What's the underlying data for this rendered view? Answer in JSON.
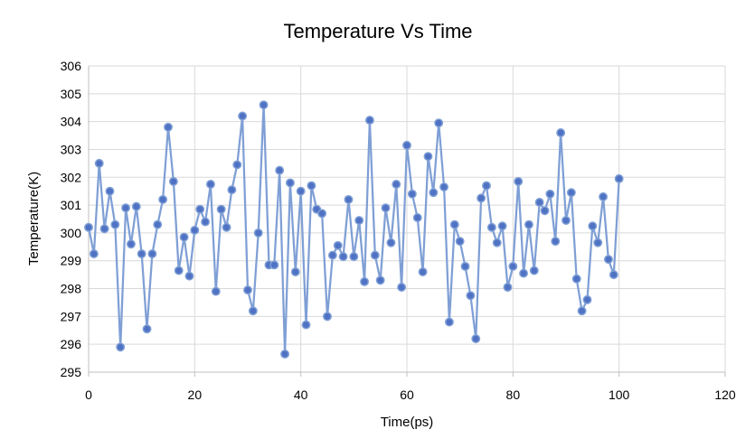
{
  "chart_data": {
    "type": "line",
    "title": "Temperature Vs Time",
    "xlabel": "Time(ps)",
    "ylabel": "Temperature(K)",
    "xlim": [
      0,
      120
    ],
    "ylim": [
      295,
      306
    ],
    "x_ticks": [
      "0",
      "20",
      "40",
      "60",
      "80",
      "100",
      "120"
    ],
    "y_ticks": [
      "295",
      "296",
      "297",
      "298",
      "299",
      "300",
      "301",
      "302",
      "303",
      "304",
      "305",
      "306"
    ],
    "x_tick_values": [
      0,
      20,
      40,
      60,
      80,
      100,
      120
    ],
    "y_tick_values": [
      295,
      296,
      297,
      298,
      299,
      300,
      301,
      302,
      303,
      304,
      305,
      306
    ],
    "grid": "vertical and horizontal",
    "legend": "none",
    "series": [
      {
        "color": "#7f9fd5",
        "x": [
          0,
          1,
          2,
          3,
          4,
          5,
          6,
          7,
          8,
          9,
          10,
          11,
          12,
          13,
          14,
          15,
          16,
          17,
          18,
          19,
          20,
          21,
          22,
          23,
          24,
          25,
          26,
          27,
          28,
          29,
          30,
          31,
          32,
          33,
          34,
          35,
          36,
          37,
          38,
          39,
          40,
          41,
          42,
          43,
          44,
          45,
          46,
          47,
          48,
          49,
          50,
          51,
          52,
          53,
          54,
          55,
          56,
          57,
          58,
          59,
          60,
          61,
          62,
          63,
          64,
          65,
          66,
          67,
          68,
          69,
          70,
          71,
          72,
          73,
          74,
          75,
          76,
          77,
          78,
          79,
          80,
          81,
          82,
          83,
          84,
          85,
          86,
          87,
          88,
          89,
          90,
          91,
          92,
          93,
          94,
          95,
          96,
          97,
          98,
          99,
          100
        ],
        "y": [
          300.2,
          299.25,
          302.5,
          300.15,
          301.5,
          300.3,
          295.9,
          300.9,
          299.6,
          300.95,
          299.25,
          296.55,
          299.25,
          300.3,
          301.2,
          303.8,
          301.85,
          298.65,
          299.85,
          298.45,
          300.1,
          300.85,
          300.4,
          301.75,
          297.9,
          300.85,
          300.2,
          301.55,
          302.45,
          304.2,
          297.95,
          297.2,
          300.0,
          304.6,
          298.85,
          298.85,
          302.25,
          295.65,
          301.8,
          298.6,
          301.5,
          296.7,
          301.7,
          300.85,
          300.7,
          297.0,
          299.2,
          299.55,
          299.15,
          301.2,
          299.15,
          300.45,
          298.25,
          304.05,
          299.2,
          298.3,
          300.9,
          299.65,
          301.75,
          298.05,
          303.15,
          301.4,
          300.55,
          298.6,
          302.75,
          301.45,
          303.95,
          301.65,
          296.8,
          300.3,
          299.7,
          298.8,
          297.75,
          296.2,
          301.25,
          301.7,
          300.2,
          299.65,
          300.25,
          298.05,
          298.8,
          301.85,
          298.55,
          300.3,
          298.65,
          301.1,
          300.8,
          301.4,
          299.7,
          303.6,
          300.45,
          301.45,
          298.35,
          297.2,
          297.6,
          300.25,
          299.65,
          301.3,
          299.05,
          298.5,
          301.95
        ]
      }
    ]
  }
}
